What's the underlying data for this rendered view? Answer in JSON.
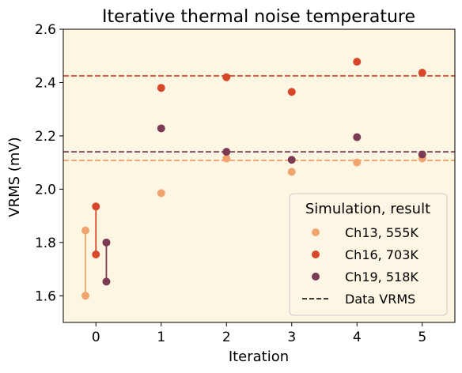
{
  "chart_data": {
    "type": "scatter",
    "title": "Iterative thermal noise temperature",
    "xlabel": "Iteration",
    "ylabel": "VRMS (mV)",
    "xlim": [
      -0.5,
      5.5
    ],
    "ylim": [
      1.5,
      2.6
    ],
    "x_ticks": [
      0,
      1,
      2,
      3,
      4,
      5
    ],
    "y_ticks": [
      "1.6",
      "1.8",
      "2.0",
      "2.2",
      "2.4",
      "2.6"
    ],
    "background_color": "#fdf6e3",
    "grid": false,
    "legend": {
      "title": "Simulation, result",
      "placement": "lower-right",
      "data_label": "Data VRMS"
    },
    "series": [
      {
        "name": "Ch13, 555K",
        "color": "#f2a46f",
        "initial_x": -0.16,
        "initial_range": [
          1.6,
          1.845
        ],
        "x": [
          1,
          2,
          3,
          4,
          5
        ],
        "y": [
          1.985,
          2.115,
          2.065,
          2.1,
          2.115
        ],
        "data_vrms": 2.108
      },
      {
        "name": "Ch16, 703K",
        "color": "#d7472a",
        "initial_x": 0.0,
        "initial_range": [
          1.755,
          1.935
        ],
        "x": [
          1,
          2,
          3,
          4,
          5
        ],
        "y": [
          2.38,
          2.42,
          2.365,
          2.478,
          2.437
        ],
        "data_vrms": 2.425
      },
      {
        "name": "Ch19, 518K",
        "color": "#7b3b55",
        "initial_x": 0.16,
        "initial_range": [
          1.653,
          1.8
        ],
        "x": [
          1,
          2,
          3,
          4,
          5
        ],
        "y": [
          2.228,
          2.14,
          2.11,
          2.195,
          2.13
        ],
        "data_vrms": 2.14
      }
    ]
  }
}
